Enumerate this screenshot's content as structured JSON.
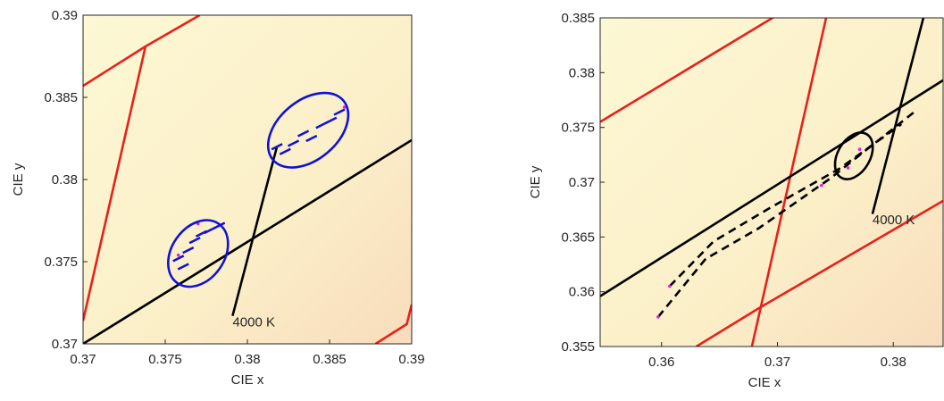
{
  "chart_data": [
    {
      "type": "line",
      "xlabel": "CIE x",
      "ylabel": "CIE y",
      "xlim": [
        0.37,
        0.39
      ],
      "ylim": [
        0.37,
        0.39
      ],
      "xticks": [
        0.37,
        0.375,
        0.38,
        0.385,
        0.39
      ],
      "yticks": [
        0.37,
        0.375,
        0.38,
        0.385,
        0.39
      ],
      "series": [
        {
          "color": "#e8201c",
          "x": [
            0.37,
            0.3738,
            0.3771
          ],
          "values": [
            0.3857,
            0.3881,
            0.39
          ]
        },
        {
          "color": "#e8201c",
          "x": [
            0.37,
            0.3738
          ],
          "values": [
            0.3714,
            0.3881
          ]
        },
        {
          "color": "#e8201c",
          "x": [
            0.3878,
            0.3897,
            0.39
          ],
          "values": [
            0.37,
            0.3712,
            0.3724
          ]
        },
        {
          "color": "#000000",
          "x": [
            0.37,
            0.39
          ],
          "values": [
            0.37,
            0.3824
          ]
        },
        {
          "color": "#000000",
          "x": [
            0.3791,
            0.3818
          ],
          "values": [
            0.3717,
            0.382
          ]
        },
        {
          "color": "#1010d8",
          "marker": "dash",
          "x": [
            0.3758,
            0.3764,
            0.3768,
            0.3772,
            0.3777,
            0.3783,
            0.3761,
            0.3818,
            0.3823,
            0.3828,
            0.3834,
            0.3839,
            0.3845,
            0.3851,
            0.3856
          ],
          "values": [
            0.3752,
            0.3757,
            0.3763,
            0.3767,
            0.3769,
            0.3772,
            0.3747,
            0.382,
            0.3817,
            0.3822,
            0.3828,
            0.3825,
            0.3833,
            0.3836,
            0.3841
          ]
        },
        {
          "color": "#e020e0",
          "marker": "dot",
          "x": [
            0.3859,
            0.377,
            0.3758
          ],
          "values": [
            0.3844,
            0.3773,
            0.3754
          ]
        }
      ],
      "ellipses": [
        {
          "color": "#1010d8",
          "cx": 0.377,
          "cy": 0.3755,
          "rx": 0.0016,
          "ry": 0.0022,
          "angle": 35
        },
        {
          "color": "#1010d8",
          "cx": 0.3837,
          "cy": 0.383,
          "rx": 0.0018,
          "ry": 0.0028,
          "angle": 50
        }
      ],
      "annotations": [
        {
          "text": "4000 K",
          "x": 0.3791,
          "y": 0.3716
        }
      ]
    },
    {
      "type": "line",
      "xlabel": "CIE x",
      "ylabel": "CIE y",
      "xlim": [
        0.3547,
        0.3843
      ],
      "ylim": [
        0.355,
        0.385
      ],
      "xticks": [
        0.36,
        0.37,
        0.38
      ],
      "yticks": [
        0.355,
        0.36,
        0.365,
        0.37,
        0.375,
        0.38,
        0.385
      ],
      "series": [
        {
          "color": "#e8201c",
          "x": [
            0.3547,
            0.3699
          ],
          "values": [
            0.3755,
            0.3852
          ]
        },
        {
          "color": "#e8201c",
          "x": [
            0.3678,
            0.3742
          ],
          "values": [
            0.355,
            0.385
          ]
        },
        {
          "color": "#e8201c",
          "x": [
            0.363,
            0.3684,
            0.3843
          ],
          "values": [
            0.355,
            0.3585,
            0.3683
          ]
        },
        {
          "color": "#000000",
          "x": [
            0.3547,
            0.3843
          ],
          "values": [
            0.3596,
            0.3793
          ]
        },
        {
          "color": "#000000",
          "x": [
            0.3782,
            0.3826
          ],
          "values": [
            0.3671,
            0.385
          ]
        },
        {
          "color": "#000000",
          "style": "dashed",
          "x": [
            0.3597,
            0.3638,
            0.3684,
            0.3745,
            0.3818
          ],
          "values": [
            0.3577,
            0.363,
            0.3658,
            0.3703,
            0.3764
          ]
        },
        {
          "color": "#000000",
          "style": "dashed",
          "x": [
            0.3607,
            0.3645,
            0.3691,
            0.3753,
            0.3807
          ],
          "values": [
            0.3605,
            0.3646,
            0.3675,
            0.3712,
            0.3753
          ]
        },
        {
          "color": "#e020e0",
          "marker": "dot",
          "x": [
            0.3597,
            0.3607,
            0.3738,
            0.3761,
            0.3771
          ],
          "values": [
            0.3577,
            0.3605,
            0.3697,
            0.3713,
            0.373
          ]
        }
      ],
      "ellipses": [
        {
          "color": "#000000",
          "cx": 0.3766,
          "cy": 0.3724,
          "rx": 0.0014,
          "ry": 0.0023,
          "angle": 30
        }
      ],
      "annotations": [
        {
          "text": "4000 K",
          "x": 0.3782,
          "y": 0.367
        }
      ]
    }
  ]
}
